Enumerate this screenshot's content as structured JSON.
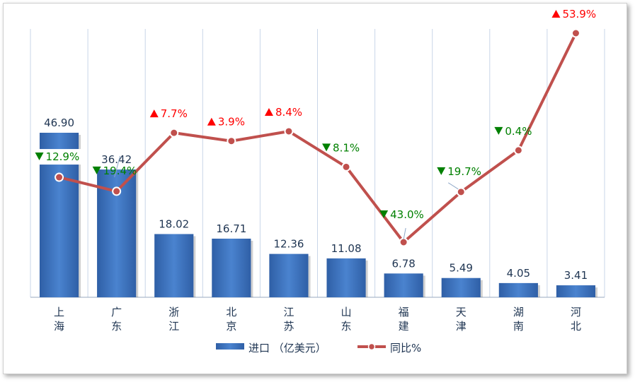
{
  "chart_data": {
    "type": "bar",
    "categories": [
      "上\n海",
      "广\n东",
      "浙\n江",
      "北\n京",
      "江\n苏",
      "山\n东",
      "福\n建",
      "天\n津",
      "湖\n南",
      "河\n北"
    ],
    "series": [
      {
        "name": "进口（亿美元）",
        "type": "bar",
        "color": "#3a6fb8",
        "values": [
          46.9,
          36.42,
          18.02,
          16.71,
          12.36,
          11.08,
          6.78,
          5.49,
          4.05,
          3.41
        ],
        "labels": [
          "46.90",
          "36.42",
          "18.02",
          "16.71",
          "12.36",
          "11.08",
          "6.78",
          "5.49",
          "4.05",
          "3.41"
        ]
      },
      {
        "name": "同比%",
        "type": "line",
        "color": "#c0504d",
        "values": [
          -12.9,
          -19.4,
          7.7,
          3.9,
          8.4,
          -8.1,
          -43.0,
          -19.7,
          -0.4,
          53.9
        ],
        "labels": [
          "12.9%",
          "19.4%",
          "7.7%",
          "3.9%",
          "8.4%",
          "8.1%",
          "43.0%",
          "19.7%",
          "0.4%",
          "53.9%"
        ]
      }
    ],
    "legend": {
      "bar": "进口 （亿美元）",
      "line": "同比%"
    },
    "up_color": "#ff0000",
    "down_color": "#008000",
    "grid": "vertical",
    "legend_position": "bottom"
  }
}
